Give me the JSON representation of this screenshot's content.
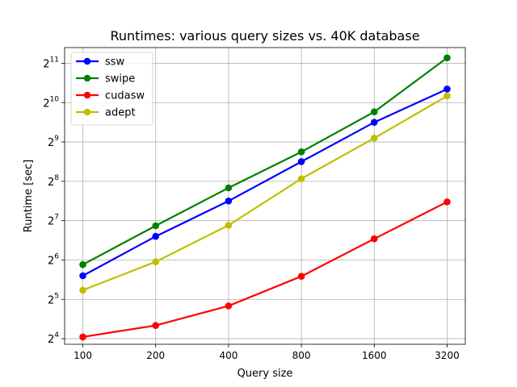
{
  "chart_data": {
    "type": "line",
    "title": "Runtimes: various query sizes vs. 40K database",
    "xlabel": "Query size",
    "ylabel": "Runtime [sec]",
    "x_scale": "log2",
    "y_scale": "log2",
    "x": [
      100,
      200,
      400,
      800,
      1600,
      3200
    ],
    "x_tick_labels": [
      "100",
      "200",
      "400",
      "800",
      "1600",
      "3200"
    ],
    "y_ticks": [
      16,
      32,
      64,
      128,
      256,
      512,
      1024,
      2048
    ],
    "y_tick_labels": [
      {
        "base": "2",
        "exp": "4"
      },
      {
        "base": "2",
        "exp": "5"
      },
      {
        "base": "2",
        "exp": "6"
      },
      {
        "base": "2",
        "exp": "7"
      },
      {
        "base": "2",
        "exp": "8"
      },
      {
        "base": "2",
        "exp": "9"
      },
      {
        "base": "2",
        "exp": "10"
      },
      {
        "base": "2",
        "exp": "11"
      }
    ],
    "ylim": [
      14.5,
      2700
    ],
    "grid": true,
    "legend_position": "top-left",
    "series": [
      {
        "name": "ssw",
        "color": "#0000ff",
        "values": [
          48.5,
          97,
          181,
          362,
          724,
          1300
        ]
      },
      {
        "name": "swipe",
        "color": "#008000",
        "values": [
          59,
          117,
          228,
          430,
          870,
          2250
        ]
      },
      {
        "name": "cudasw",
        "color": "#ff0000",
        "values": [
          16.5,
          20.2,
          28.5,
          48,
          93,
          178
        ]
      },
      {
        "name": "adept",
        "color": "#bfbf00",
        "values": [
          37.6,
          62,
          118,
          268,
          548,
          1150
        ]
      }
    ]
  }
}
